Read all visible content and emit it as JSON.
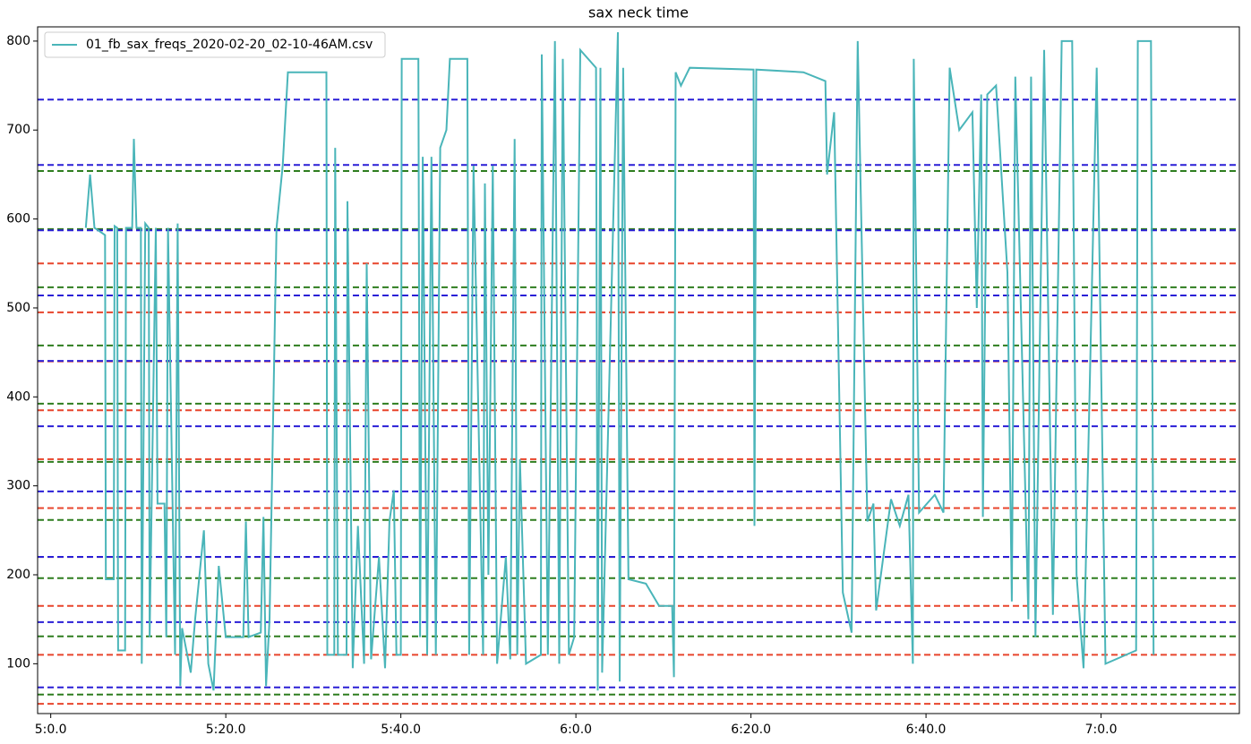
{
  "chart_data": {
    "type": "line",
    "title": "sax neck time",
    "xlim": [
      298.5,
      435.8
    ],
    "ylim": [
      44,
      816
    ],
    "xticks": [
      {
        "value": 300,
        "label": "5:0.0"
      },
      {
        "value": 320,
        "label": "5:20.0"
      },
      {
        "value": 340,
        "label": "5:40.0"
      },
      {
        "value": 360,
        "label": "6:0.0"
      },
      {
        "value": 380,
        "label": "6:20.0"
      },
      {
        "value": 400,
        "label": "6:40.0"
      },
      {
        "value": 420,
        "label": "7:0.0"
      }
    ],
    "yticks": [
      100,
      200,
      300,
      400,
      500,
      600,
      700,
      800
    ],
    "legend": "upper left",
    "reference_lines": [
      {
        "color": "#e8452c",
        "values": [
          55,
          110,
          165,
          220,
          275,
          330,
          385,
          440,
          495,
          550
        ]
      },
      {
        "color": "#2e7d1f",
        "values": [
          65.4,
          130.8,
          196.2,
          261.6,
          327,
          392.4,
          457.8,
          523.2,
          588.6,
          654
        ]
      },
      {
        "color": "#2a1fd6",
        "values": [
          73.4,
          146.8,
          220.2,
          293.7,
          367,
          440.4,
          514,
          587.3,
          660.7,
          734.2
        ]
      }
    ],
    "series": [
      {
        "name": "01_fb_sax_freqs_2020-02-20_02-10-46AM.csv",
        "color": "#4ab5b9",
        "x": [
          304.0,
          304.5,
          305.0,
          306.2,
          306.3,
          307.2,
          307.3,
          307.6,
          307.7,
          308.5,
          308.6,
          309.3,
          309.5,
          309.8,
          310.3,
          310.4,
          310.8,
          311.2,
          311.3,
          312.0,
          312.2,
          313.0,
          313.2,
          313.4,
          314.2,
          314.5,
          314.8,
          315.0,
          316.0,
          316.5,
          317.5,
          318.0,
          318.6,
          319.2,
          320.0,
          322.0,
          322.3,
          322.6,
          324.0,
          324.3,
          324.6,
          325.0,
          325.8,
          326.5,
          327.1,
          331.5,
          331.6,
          332.4,
          332.5,
          332.8,
          333.8,
          333.9,
          334.5,
          335.1,
          335.8,
          336.1,
          336.6,
          337.5,
          338.2,
          338.7,
          339.2,
          339.5,
          340.0,
          340.1,
          342.0,
          342.2,
          342.5,
          343.0,
          343.5,
          344.0,
          344.5,
          345.2,
          345.6,
          347.6,
          347.8,
          348.3,
          349.4,
          349.6,
          350.0,
          350.5,
          351.0,
          352.0,
          352.5,
          353.0,
          353.3,
          353.6,
          354.3,
          356.0,
          356.1,
          356.8,
          357.6,
          358.1,
          358.5,
          359.2,
          359.8,
          360.5,
          362.3,
          362.5,
          362.8,
          363.0,
          364.8,
          365.0,
          365.4,
          366.0,
          368.0,
          369.5,
          371.0,
          371.2,
          371.4,
          372.0,
          373.0,
          380.3,
          380.4,
          380.6,
          386.0,
          388.5,
          388.7,
          389.5,
          390.5,
          391.5,
          392.2,
          393.3,
          394.0,
          394.3,
          396.0,
          397.0,
          398.0,
          398.5,
          398.6,
          399.2,
          401.0,
          402.0,
          402.7,
          403.8,
          405.3,
          405.8,
          406.3,
          406.5,
          407.0,
          408.0,
          409.3,
          409.8,
          410.2,
          411.7,
          412.0,
          412.5,
          413.5,
          414.5,
          415.5,
          416.7,
          417.2,
          418.0,
          419.5,
          420.5,
          424.0,
          424.2,
          425.7,
          426.0
        ],
        "values": [
          590,
          650,
          590,
          582,
          195,
          195,
          592,
          590,
          115,
          115,
          590,
          590,
          690,
          590,
          590,
          100,
          595,
          590,
          130,
          590,
          280,
          280,
          130,
          590,
          110,
          595,
          75,
          140,
          90,
          150,
          250,
          100,
          70,
          210,
          130,
          130,
          260,
          130,
          135,
          265,
          75,
          150,
          590,
          660,
          765,
          765,
          110,
          110,
          680,
          110,
          110,
          620,
          95,
          255,
          100,
          550,
          105,
          220,
          95,
          260,
          295,
          110,
          110,
          780,
          780,
          130,
          670,
          110,
          670,
          110,
          680,
          700,
          780,
          780,
          110,
          660,
          110,
          640,
          200,
          660,
          100,
          220,
          105,
          690,
          110,
          330,
          100,
          110,
          785,
          110,
          800,
          100,
          780,
          110,
          130,
          790,
          770,
          70,
          770,
          90,
          810,
          80,
          770,
          195,
          190,
          165,
          165,
          85,
          765,
          750,
          770,
          768,
          255,
          768,
          765,
          755,
          650,
          720,
          180,
          135,
          800,
          260,
          280,
          160,
          285,
          255,
          290,
          100,
          780,
          270,
          290,
          270,
          770,
          700,
          720,
          500,
          740,
          265,
          740,
          750,
          540,
          170,
          760,
          150,
          760,
          130,
          790,
          155,
          800,
          800,
          200,
          95,
          770,
          100,
          115,
          800,
          800,
          110
        ]
      }
    ]
  }
}
